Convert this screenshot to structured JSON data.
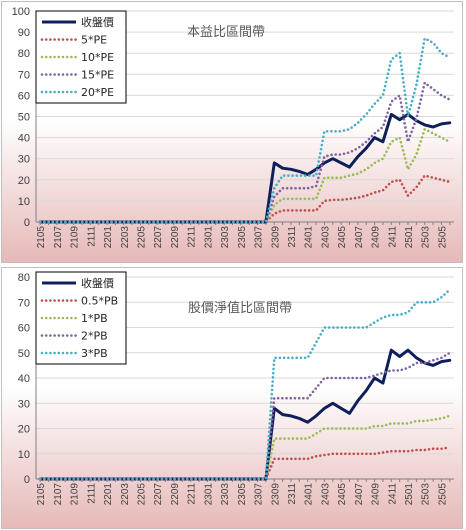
{
  "colors": {
    "close": "#0f1f5c",
    "pe5": "#c0504d",
    "pe10": "#9bbb59",
    "pe15": "#8064a2",
    "pe20": "#4bacc6",
    "grid": "#d9d9d9",
    "axis": "#808080",
    "gradient_bottom": "#e6b9b8"
  },
  "chart_data": [
    {
      "type": "line",
      "title": "本益比區間帶",
      "ylim": [
        0,
        100
      ],
      "yticks": [
        0,
        10,
        20,
        30,
        40,
        50,
        60,
        70,
        80,
        90,
        100
      ],
      "grid": true,
      "legend_position": "top-left",
      "x_tick_labels": [
        "2105",
        "2107",
        "2109",
        "2111",
        "2201",
        "2203",
        "2205",
        "2207",
        "2209",
        "2211",
        "2301",
        "2303",
        "2305",
        "2307",
        "2309",
        "2311",
        "2401",
        "2403",
        "2405",
        "2407",
        "2409",
        "2411",
        "2501",
        "2503",
        "2505"
      ],
      "x": [
        "2105",
        "2106",
        "2107",
        "2108",
        "2109",
        "2110",
        "2111",
        "2112",
        "2201",
        "2202",
        "2203",
        "2204",
        "2205",
        "2206",
        "2207",
        "2208",
        "2209",
        "2210",
        "2211",
        "2212",
        "2301",
        "2302",
        "2303",
        "2304",
        "2305",
        "2306",
        "2307",
        "2308",
        "2309",
        "2310",
        "2311",
        "2312",
        "2401",
        "2402",
        "2403",
        "2404",
        "2405",
        "2406",
        "2407",
        "2408",
        "2409",
        "2410",
        "2411",
        "2412",
        "2501",
        "2502",
        "2503",
        "2504",
        "2505",
        "2506"
      ],
      "series": [
        {
          "name": "收盤價",
          "style": "solid",
          "color": "#0f1f5c",
          "values": [
            0,
            0,
            0,
            0,
            0,
            0,
            0,
            0,
            0,
            0,
            0,
            0,
            0,
            0,
            0,
            0,
            0,
            0,
            0,
            0,
            0,
            0,
            0,
            0,
            0,
            0,
            0,
            0,
            28,
            25.5,
            25,
            24,
            22.5,
            25,
            28,
            30,
            28,
            26,
            31,
            35,
            40,
            38,
            51,
            48.5,
            51,
            48,
            46,
            45,
            46.5,
            47
          ]
        },
        {
          "name": "5*PE",
          "style": "dotted",
          "color": "#c0504d",
          "values": [
            0,
            0,
            0,
            0,
            0,
            0,
            0,
            0,
            0,
            0,
            0,
            0,
            0,
            0,
            0,
            0,
            0,
            0,
            0,
            0,
            0,
            0,
            0,
            0,
            0,
            0,
            0,
            0,
            4,
            5.5,
            5.5,
            5.5,
            5.5,
            5.5,
            10,
            10.5,
            10.5,
            11,
            11.5,
            12.5,
            14,
            15,
            19,
            20,
            12.5,
            16.5,
            22,
            21,
            20,
            19
          ]
        },
        {
          "name": "10*PE",
          "style": "dotted",
          "color": "#9bbb59",
          "values": [
            0,
            0,
            0,
            0,
            0,
            0,
            0,
            0,
            0,
            0,
            0,
            0,
            0,
            0,
            0,
            0,
            0,
            0,
            0,
            0,
            0,
            0,
            0,
            0,
            0,
            0,
            0,
            0,
            8,
            11,
            11,
            11,
            11,
            11,
            21,
            21,
            21,
            22,
            23,
            25,
            28,
            30,
            38,
            40,
            25,
            32,
            44,
            42,
            40,
            38
          ]
        },
        {
          "name": "15*PE",
          "style": "dotted",
          "color": "#8064a2",
          "values": [
            0,
            0,
            0,
            0,
            0,
            0,
            0,
            0,
            0,
            0,
            0,
            0,
            0,
            0,
            0,
            0,
            0,
            0,
            0,
            0,
            0,
            0,
            0,
            0,
            0,
            0,
            0,
            0,
            12,
            16,
            16,
            16,
            16,
            17,
            31,
            32,
            32,
            33,
            35,
            38,
            42,
            45,
            57,
            60,
            38,
            49,
            66,
            63,
            60,
            58
          ]
        },
        {
          "name": "20*PE",
          "style": "dotted",
          "color": "#4bacc6",
          "values": [
            0,
            0,
            0,
            0,
            0,
            0,
            0,
            0,
            0,
            0,
            0,
            0,
            0,
            0,
            0,
            0,
            0,
            0,
            0,
            0,
            0,
            0,
            0,
            0,
            0,
            0,
            0,
            0,
            16,
            22,
            22,
            22,
            22,
            22,
            43,
            43,
            43,
            44,
            47,
            51,
            56,
            60,
            77,
            80,
            50,
            65,
            87,
            85,
            80,
            78
          ]
        }
      ]
    },
    {
      "type": "line",
      "title": "股價淨值比區間帶",
      "ylim": [
        0,
        80
      ],
      "yticks": [
        0,
        10,
        20,
        30,
        40,
        50,
        60,
        70,
        80
      ],
      "grid": true,
      "legend_position": "top-left",
      "x_tick_labels": [
        "2105",
        "2107",
        "2109",
        "2111",
        "2201",
        "2203",
        "2205",
        "2207",
        "2209",
        "2211",
        "2301",
        "2303",
        "2305",
        "2307",
        "2309",
        "2311",
        "2401",
        "2403",
        "2405",
        "2407",
        "2409",
        "2411",
        "2501",
        "2503",
        "2505"
      ],
      "x": [
        "2105",
        "2106",
        "2107",
        "2108",
        "2109",
        "2110",
        "2111",
        "2112",
        "2201",
        "2202",
        "2203",
        "2204",
        "2205",
        "2206",
        "2207",
        "2208",
        "2209",
        "2210",
        "2211",
        "2212",
        "2301",
        "2302",
        "2303",
        "2304",
        "2305",
        "2306",
        "2307",
        "2308",
        "2309",
        "2310",
        "2311",
        "2312",
        "2401",
        "2402",
        "2403",
        "2404",
        "2405",
        "2406",
        "2407",
        "2408",
        "2409",
        "2410",
        "2411",
        "2412",
        "2501",
        "2502",
        "2503",
        "2504",
        "2505",
        "2506"
      ],
      "series": [
        {
          "name": "收盤價",
          "style": "solid",
          "color": "#0f1f5c",
          "values": [
            0,
            0,
            0,
            0,
            0,
            0,
            0,
            0,
            0,
            0,
            0,
            0,
            0,
            0,
            0,
            0,
            0,
            0,
            0,
            0,
            0,
            0,
            0,
            0,
            0,
            0,
            0,
            0,
            28,
            25.5,
            25,
            24,
            22.5,
            25,
            28,
            30,
            28,
            26,
            31,
            35,
            40,
            38,
            51,
            48.5,
            51,
            48,
            46,
            45,
            46.5,
            47
          ]
        },
        {
          "name": "0.5*PB",
          "style": "dotted",
          "color": "#c0504d",
          "values": [
            0,
            0,
            0,
            0,
            0,
            0,
            0,
            0,
            0,
            0,
            0,
            0,
            0,
            0,
            0,
            0,
            0,
            0,
            0,
            0,
            0,
            0,
            0,
            0,
            0,
            0,
            0,
            0,
            8,
            8,
            8,
            8,
            8,
            9,
            9.5,
            10,
            10,
            10,
            10,
            10,
            10,
            10.5,
            11,
            11,
            11,
            11.5,
            11.5,
            12,
            12,
            12.5
          ]
        },
        {
          "name": "1*PB",
          "style": "dotted",
          "color": "#9bbb59",
          "values": [
            0,
            0,
            0,
            0,
            0,
            0,
            0,
            0,
            0,
            0,
            0,
            0,
            0,
            0,
            0,
            0,
            0,
            0,
            0,
            0,
            0,
            0,
            0,
            0,
            0,
            0,
            0,
            0,
            16,
            16,
            16,
            16,
            16,
            18,
            20,
            20,
            20,
            20,
            20,
            20,
            21,
            21,
            22,
            22,
            22,
            23,
            23,
            23.5,
            24,
            25
          ]
        },
        {
          "name": "2*PB",
          "style": "dotted",
          "color": "#8064a2",
          "values": [
            0,
            0,
            0,
            0,
            0,
            0,
            0,
            0,
            0,
            0,
            0,
            0,
            0,
            0,
            0,
            0,
            0,
            0,
            0,
            0,
            0,
            0,
            0,
            0,
            0,
            0,
            0,
            0,
            32,
            32,
            32,
            32,
            32,
            36,
            40,
            40,
            40,
            40,
            40,
            40,
            41,
            42,
            43,
            43,
            44,
            46,
            46,
            47,
            48,
            50
          ]
        },
        {
          "name": "3*PB",
          "style": "dotted",
          "color": "#4bacc6",
          "values": [
            0,
            0,
            0,
            0,
            0,
            0,
            0,
            0,
            0,
            0,
            0,
            0,
            0,
            0,
            0,
            0,
            0,
            0,
            0,
            0,
            0,
            0,
            0,
            0,
            0,
            0,
            0,
            0,
            48,
            48,
            48,
            48,
            48,
            54,
            60,
            60,
            60,
            60,
            60,
            60,
            62,
            64,
            65,
            65,
            66,
            70,
            70,
            70,
            72,
            75
          ]
        }
      ]
    }
  ]
}
